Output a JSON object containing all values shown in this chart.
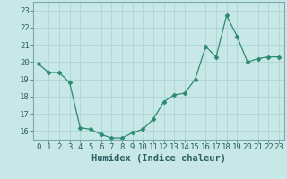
{
  "x": [
    0,
    1,
    2,
    3,
    4,
    5,
    6,
    7,
    8,
    9,
    10,
    11,
    12,
    13,
    14,
    15,
    16,
    17,
    18,
    19,
    20,
    21,
    22,
    23
  ],
  "y": [
    19.9,
    19.4,
    19.4,
    18.8,
    16.2,
    16.1,
    15.8,
    15.6,
    15.6,
    15.9,
    16.1,
    16.7,
    17.7,
    18.1,
    18.2,
    19.0,
    20.9,
    20.3,
    22.7,
    21.5,
    20.0,
    20.2,
    20.3,
    20.3
  ],
  "line_color": "#2a8a72",
  "marker": "D",
  "marker_size": 2.5,
  "bg_color": "#c8e8e8",
  "grid_color": "#aacfcf",
  "xlabel": "Humidex (Indice chaleur)",
  "ylim": [
    15.5,
    23.5
  ],
  "xlim": [
    -0.5,
    23.5
  ],
  "yticks": [
    16,
    17,
    18,
    19,
    20,
    21,
    22,
    23
  ],
  "xticks": [
    0,
    1,
    2,
    3,
    4,
    5,
    6,
    7,
    8,
    9,
    10,
    11,
    12,
    13,
    14,
    15,
    16,
    17,
    18,
    19,
    20,
    21,
    22,
    23
  ],
  "tick_fontsize": 6.5,
  "xlabel_fontsize": 7.5,
  "tick_color": "#2a6060",
  "spine_color": "#7aabab"
}
